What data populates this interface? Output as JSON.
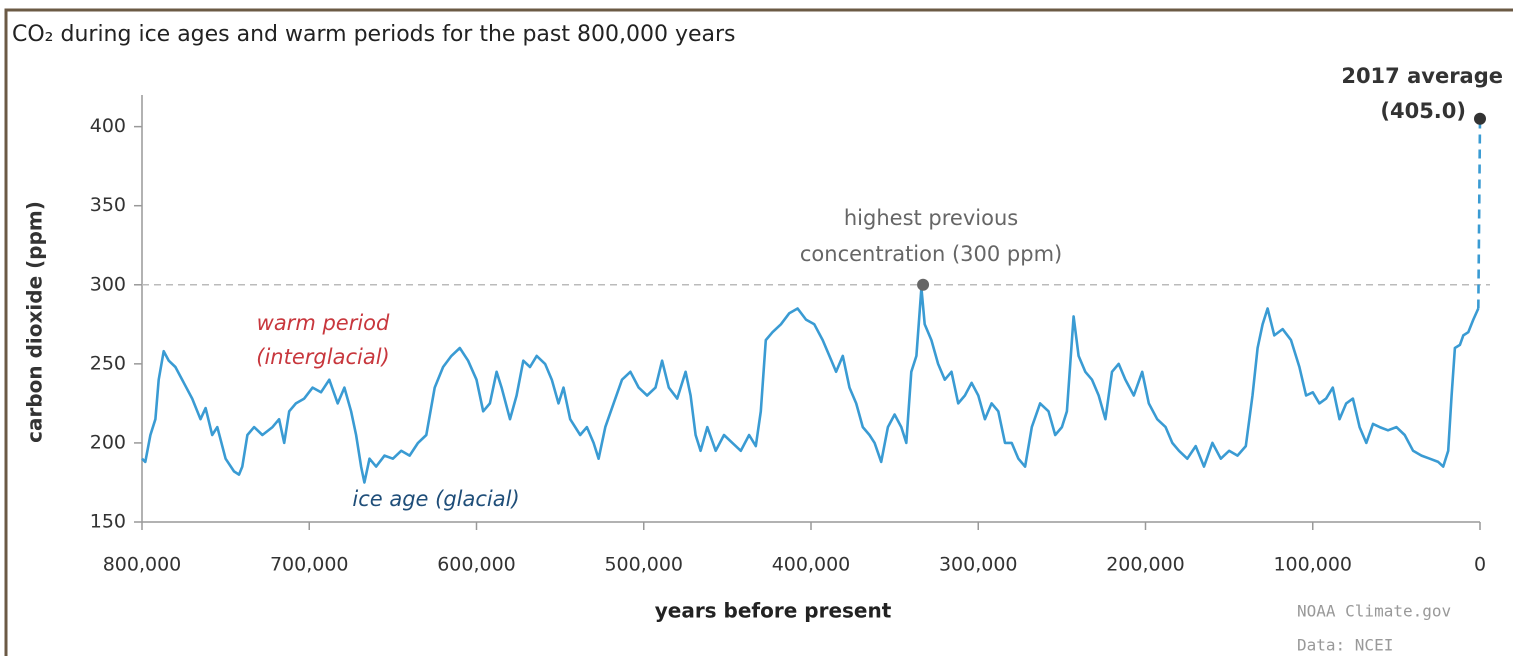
{
  "chart_data": {
    "type": "line",
    "title": "CO₂ during ice ages and warm periods for the past 800,000 years",
    "x_label": "years before present",
    "y_label": "carbon dioxide (ppm)",
    "xlim": [
      800000,
      0
    ],
    "xticks": [
      {
        "value": 800000,
        "label": "800,000"
      },
      {
        "value": 700000,
        "label": "700,000"
      },
      {
        "value": 600000,
        "label": "600,000"
      },
      {
        "value": 500000,
        "label": "500,000"
      },
      {
        "value": 400000,
        "label": "400,000"
      },
      {
        "value": 300000,
        "label": "300,000"
      },
      {
        "value": 200000,
        "label": "200,000"
      },
      {
        "value": 100000,
        "label": "100,000"
      },
      0
    ],
    "ylim": [
      150,
      420
    ],
    "yticks": [
      150,
      200,
      250,
      300,
      350,
      400
    ],
    "x": [
      800000,
      798000,
      795000,
      792000,
      790000,
      787000,
      784000,
      780000,
      775000,
      770000,
      765000,
      762000,
      758000,
      755000,
      750000,
      745000,
      742000,
      740000,
      737000,
      733000,
      728000,
      722000,
      718000,
      715000,
      712000,
      708000,
      703000,
      698000,
      693000,
      688000,
      683000,
      679000,
      675000,
      672000,
      669000,
      667000,
      664000,
      660000,
      655000,
      650000,
      645000,
      640000,
      635000,
      630000,
      625000,
      620000,
      615000,
      610000,
      605000,
      600000,
      596000,
      592000,
      588000,
      585000,
      580000,
      576000,
      572000,
      568000,
      564000,
      559000,
      555000,
      551000,
      548000,
      544000,
      538000,
      534000,
      530000,
      527000,
      523000,
      518000,
      513000,
      508000,
      503000,
      498000,
      493000,
      489000,
      485000,
      480000,
      475000,
      472000,
      469000,
      466000,
      462000,
      457000,
      452000,
      447000,
      442000,
      437000,
      433000,
      430000,
      427000,
      423000,
      418000,
      413000,
      408000,
      403000,
      398000,
      393000,
      389000,
      385000,
      381000,
      377000,
      373000,
      369000,
      365000,
      362000,
      358000,
      354000,
      350000,
      346000,
      343000,
      340000,
      337000,
      334000,
      332000,
      328000,
      324000,
      320000,
      316000,
      312000,
      308000,
      304000,
      300000,
      296000,
      292000,
      288000,
      284000,
      280000,
      276000,
      272000,
      268000,
      263000,
      258000,
      254000,
      250000,
      247000,
      243000,
      240000,
      236000,
      232000,
      228000,
      224000,
      220000,
      216000,
      212000,
      207000,
      202000,
      198000,
      193000,
      188000,
      184000,
      180000,
      175000,
      170000,
      165000,
      160000,
      155000,
      150000,
      145000,
      140000,
      136000,
      133000,
      130000,
      127000,
      123000,
      118000,
      113000,
      108000,
      104000,
      100000,
      96000,
      92000,
      88000,
      84000,
      80000,
      76000,
      72000,
      68000,
      64000,
      60000,
      55000,
      50000,
      45000,
      40000,
      35000,
      30000,
      25000,
      22000,
      19000,
      17000,
      15000,
      12000,
      10000,
      7000,
      4000,
      1000
    ],
    "series": [
      {
        "color": "#3a9bd3",
        "values": [
          190,
          188,
          205,
          215,
          240,
          258,
          252,
          248,
          238,
          228,
          215,
          222,
          205,
          210,
          190,
          182,
          180,
          185,
          205,
          210,
          205,
          210,
          215,
          200,
          220,
          225,
          228,
          235,
          232,
          240,
          225,
          235,
          220,
          205,
          185,
          175,
          190,
          185,
          192,
          190,
          195,
          192,
          200,
          205,
          235,
          248,
          255,
          260,
          252,
          240,
          220,
          225,
          245,
          235,
          215,
          230,
          252,
          248,
          255,
          250,
          240,
          225,
          235,
          215,
          205,
          210,
          200,
          190,
          210,
          225,
          240,
          245,
          235,
          230,
          235,
          252,
          235,
          228,
          245,
          230,
          205,
          195,
          210,
          195,
          205,
          200,
          195,
          205,
          198,
          220,
          265,
          270,
          275,
          282,
          285,
          278,
          275,
          265,
          255,
          245,
          255,
          235,
          225,
          210,
          205,
          200,
          188,
          210,
          218,
          210,
          200,
          245,
          255,
          298,
          275,
          265,
          250,
          240,
          245,
          225,
          230,
          238,
          230,
          215,
          225,
          220,
          200,
          200,
          190,
          185,
          210,
          225,
          220,
          205,
          210,
          220,
          280,
          255,
          245,
          240,
          230,
          215,
          245,
          250,
          240,
          230,
          245,
          225,
          215,
          210,
          200,
          195,
          190,
          198,
          185,
          200,
          190,
          195,
          192,
          198,
          230,
          260,
          275,
          285,
          268,
          272,
          265,
          248,
          230,
          232,
          225,
          228,
          235,
          215,
          225,
          228,
          210,
          200,
          212,
          210,
          208,
          210,
          205,
          195,
          192,
          190,
          188,
          185,
          195,
          230,
          260,
          262,
          268,
          270,
          278,
          285
        ]
      }
    ],
    "reference_line": 300,
    "highlights": [
      {
        "x": 333000,
        "value": 300,
        "label_lines": [
          "highest previous",
          "concentration (300 ppm)"
        ]
      },
      {
        "x": 0,
        "value": 405,
        "label": "2017 average",
        "value_label": "(405.0)"
      }
    ],
    "annotations": [
      {
        "lines": [
          "warm period",
          "(interglacial)"
        ],
        "color": "#c8373d"
      },
      {
        "lines": [
          "ice age (glacial)"
        ],
        "color": "#1f4e79"
      }
    ],
    "source": [
      "NOAA Climate.gov",
      "Data: NCEI"
    ]
  }
}
